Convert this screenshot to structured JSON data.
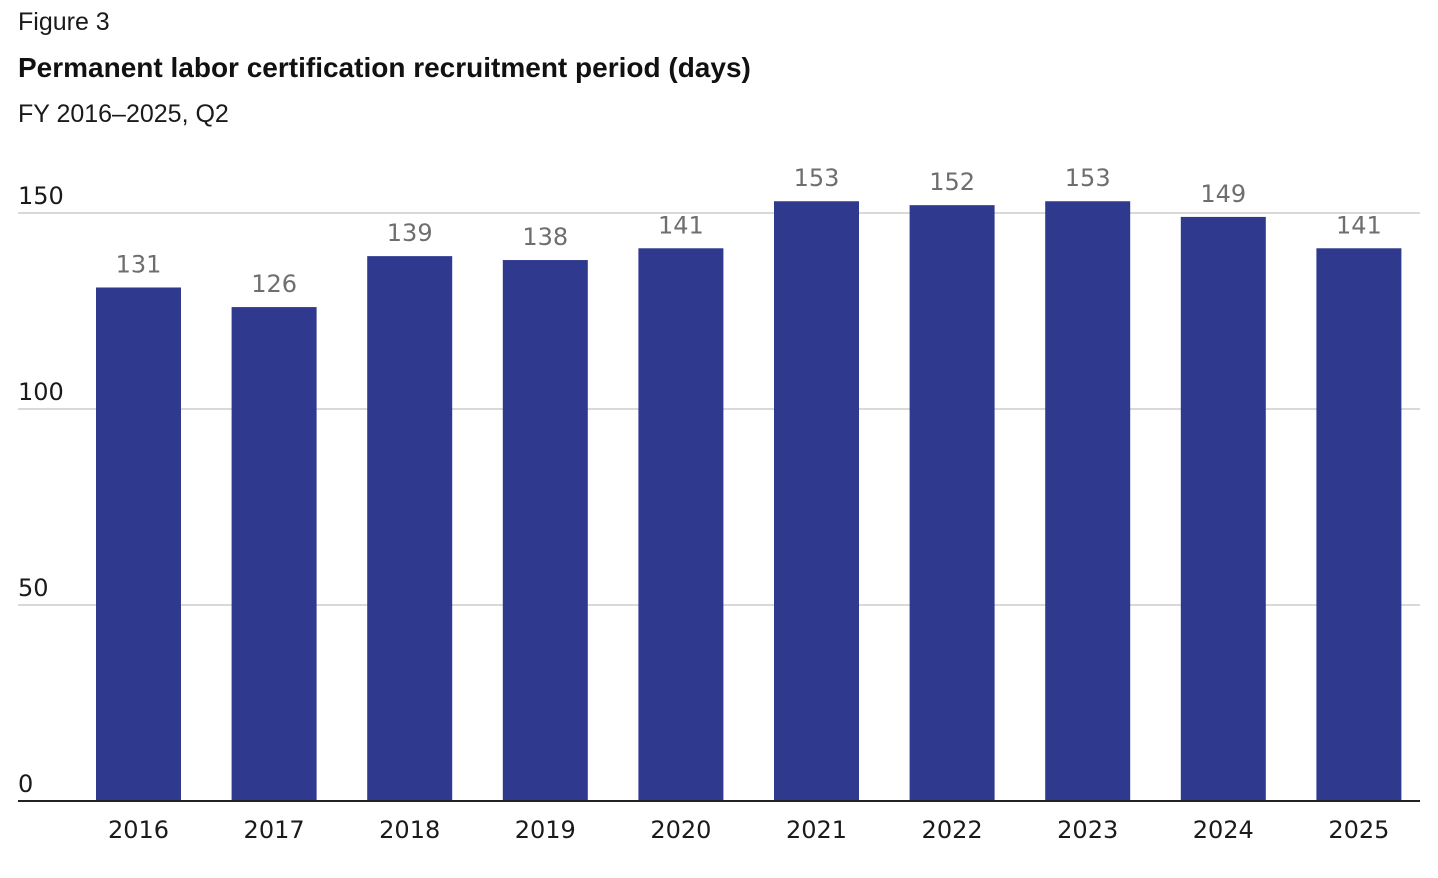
{
  "header": {
    "figure_label": "Figure 3",
    "title": "Permanent labor certification recruitment period (days)",
    "subtitle": "FY 2016–2025, Q2"
  },
  "colors": {
    "bar": "#2f3a8f",
    "gridline": "#d9d9d9",
    "axis": "#222222",
    "data_label": "#6e6e6e"
  },
  "chart_data": {
    "type": "bar",
    "title": "Permanent labor certification recruitment period (days)",
    "subtitle": "FY 2016–2025, Q2",
    "categories": [
      "2016",
      "2017",
      "2018",
      "2019",
      "2020",
      "2021",
      "2022",
      "2023",
      "2024",
      "2025"
    ],
    "values": [
      131,
      126,
      139,
      138,
      141,
      153,
      152,
      153,
      149,
      141
    ],
    "data_labels": [
      "131",
      "126",
      "139",
      "138",
      "141",
      "153",
      "152",
      "153",
      "149",
      "141"
    ],
    "xlabel": "",
    "ylabel": "",
    "ylim": [
      0,
      150
    ],
    "yticks": [
      0,
      50,
      100,
      150
    ],
    "ytick_labels": [
      "0",
      "50",
      "100",
      "150"
    ],
    "grid": true,
    "legend": "none"
  }
}
